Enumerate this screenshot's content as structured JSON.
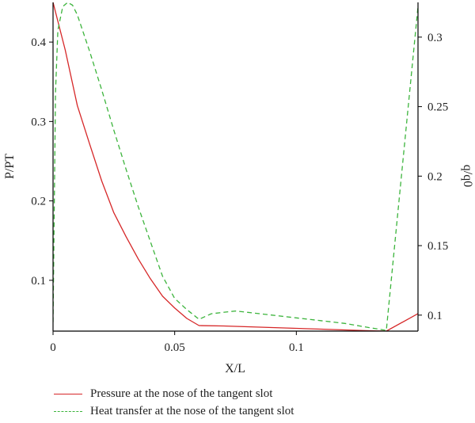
{
  "chart_data": {
    "type": "line",
    "title": "",
    "xlabel": "X/L",
    "ylabel": "P/PT",
    "y2label": "q/q0",
    "xlim": [
      0,
      0.15
    ],
    "ylim": [
      0.036,
      0.45
    ],
    "y2lim": [
      0.0885,
      0.325
    ],
    "x_ticks": [
      0,
      0.05,
      0.1
    ],
    "x_tick_labels": [
      "0",
      "0.05",
      "0.1"
    ],
    "y_ticks": [
      0.1,
      0.2,
      0.3,
      0.4
    ],
    "y_tick_labels": [
      "0.1",
      "0.2",
      "0.3",
      "0.4"
    ],
    "y2_ticks": [
      0.1,
      0.15,
      0.2,
      0.25,
      0.3
    ],
    "y2_tick_labels": [
      "0.1",
      "0.15",
      "0.2",
      "0.25",
      "0.3"
    ],
    "grid": false,
    "legend_position": "bottom",
    "series": [
      {
        "name": "Pressure at the nose of the tangent slot",
        "axis": "left",
        "color": "#d62728",
        "style": "solid",
        "x": [
          0,
          0.005,
          0.01,
          0.015,
          0.02,
          0.025,
          0.03,
          0.035,
          0.04,
          0.045,
          0.05,
          0.055,
          0.06,
          0.07,
          0.08,
          0.09,
          0.1,
          0.11,
          0.12,
          0.13,
          0.137,
          0.15
        ],
        "y": [
          0.45,
          0.39,
          0.32,
          0.272,
          0.225,
          0.185,
          0.155,
          0.127,
          0.102,
          0.08,
          0.065,
          0.052,
          0.043,
          0.0425,
          0.0415,
          0.0405,
          0.0395,
          0.0385,
          0.0375,
          0.0365,
          0.036,
          0.058
        ]
      },
      {
        "name": "Heat transfer at the nose of the tangent slot",
        "axis": "right",
        "color": "#3cb43c",
        "style": "dashed",
        "x": [
          0,
          0.001,
          0.002,
          0.004,
          0.006,
          0.008,
          0.01,
          0.015,
          0.02,
          0.025,
          0.03,
          0.035,
          0.04,
          0.045,
          0.05,
          0.055,
          0.06,
          0.065,
          0.07,
          0.075,
          0.08,
          0.09,
          0.1,
          0.11,
          0.12,
          0.13,
          0.137,
          0.15
        ],
        "y": [
          0.095,
          0.26,
          0.305,
          0.322,
          0.325,
          0.323,
          0.316,
          0.29,
          0.262,
          0.233,
          0.205,
          0.178,
          0.153,
          0.128,
          0.112,
          0.104,
          0.097,
          0.101,
          0.102,
          0.103,
          0.102,
          0.1,
          0.098,
          0.096,
          0.094,
          0.091,
          0.089,
          0.322
        ]
      }
    ]
  }
}
